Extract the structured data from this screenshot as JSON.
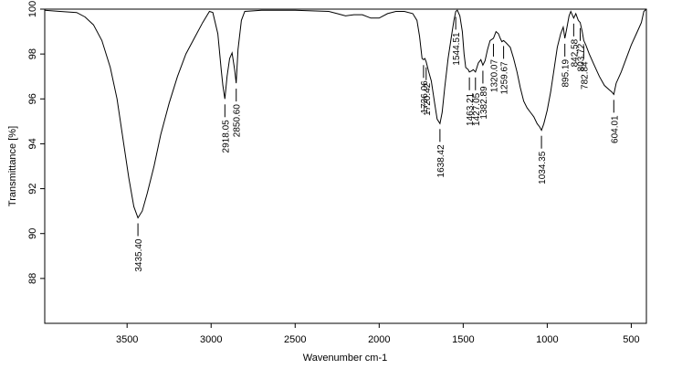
{
  "chart_data": {
    "type": "line",
    "xlabel": "Wavenumber cm-1",
    "ylabel": "Transmittance [%]",
    "xlim": [
      3990,
      410
    ],
    "ylim": [
      86,
      100
    ],
    "x_reversed": true,
    "x_ticks": [
      "3500",
      "3000",
      "2500",
      "2000",
      "1500",
      "1000",
      "500"
    ],
    "x_tick_values": [
      3500,
      3000,
      2500,
      2000,
      1500,
      1000,
      500
    ],
    "y_ticks": [
      "88",
      "90",
      "92",
      "94",
      "96",
      "98",
      "100"
    ],
    "y_tick_values": [
      88,
      90,
      92,
      94,
      96,
      98,
      100
    ],
    "grid": false,
    "series": [
      {
        "points": [
          [
            3990,
            99.95
          ],
          [
            3900,
            99.9
          ],
          [
            3800,
            99.85
          ],
          [
            3750,
            99.65
          ],
          [
            3700,
            99.3
          ],
          [
            3650,
            98.6
          ],
          [
            3600,
            97.4
          ],
          [
            3560,
            96.0
          ],
          [
            3520,
            94.0
          ],
          [
            3490,
            92.5
          ],
          [
            3460,
            91.2
          ],
          [
            3435.4,
            90.7
          ],
          [
            3410,
            91.0
          ],
          [
            3380,
            91.8
          ],
          [
            3340,
            93.0
          ],
          [
            3300,
            94.4
          ],
          [
            3250,
            95.8
          ],
          [
            3200,
            97.0
          ],
          [
            3150,
            98.0
          ],
          [
            3100,
            98.7
          ],
          [
            3050,
            99.4
          ],
          [
            3010,
            99.9
          ],
          [
            2990,
            99.85
          ],
          [
            2960,
            98.9
          ],
          [
            2940,
            97.3
          ],
          [
            2930,
            96.6
          ],
          [
            2918.05,
            96.0
          ],
          [
            2905,
            97.0
          ],
          [
            2890,
            97.8
          ],
          [
            2875,
            98.05
          ],
          [
            2860,
            97.3
          ],
          [
            2850.6,
            96.7
          ],
          [
            2840,
            98.2
          ],
          [
            2820,
            99.5
          ],
          [
            2800,
            99.9
          ],
          [
            2700,
            99.95
          ],
          [
            2500,
            99.95
          ],
          [
            2300,
            99.9
          ],
          [
            2250,
            99.8
          ],
          [
            2200,
            99.7
          ],
          [
            2150,
            99.75
          ],
          [
            2100,
            99.75
          ],
          [
            2050,
            99.6
          ],
          [
            2000,
            99.6
          ],
          [
            1950,
            99.8
          ],
          [
            1900,
            99.9
          ],
          [
            1850,
            99.9
          ],
          [
            1800,
            99.8
          ],
          [
            1775,
            99.5
          ],
          [
            1760,
            98.8
          ],
          [
            1745,
            97.8
          ],
          [
            1736.06,
            97.75
          ],
          [
            1728,
            97.8
          ],
          [
            1720.42,
            97.65
          ],
          [
            1705,
            97.2
          ],
          [
            1690,
            96.8
          ],
          [
            1670,
            95.8
          ],
          [
            1655,
            95.1
          ],
          [
            1638.42,
            94.9
          ],
          [
            1625,
            95.4
          ],
          [
            1610,
            96.5
          ],
          [
            1590,
            97.8
          ],
          [
            1570,
            98.8
          ],
          [
            1555,
            99.5
          ],
          [
            1544.51,
            99.9
          ],
          [
            1535,
            99.95
          ],
          [
            1520,
            99.7
          ],
          [
            1505,
            99.0
          ],
          [
            1495,
            98.0
          ],
          [
            1485,
            97.4
          ],
          [
            1470,
            97.3
          ],
          [
            1463.21,
            97.2
          ],
          [
            1450,
            97.25
          ],
          [
            1440,
            97.3
          ],
          [
            1427.05,
            97.2
          ],
          [
            1410,
            97.6
          ],
          [
            1395,
            97.75
          ],
          [
            1382.89,
            97.5
          ],
          [
            1370,
            97.7
          ],
          [
            1355,
            98.2
          ],
          [
            1340,
            98.6
          ],
          [
            1320.07,
            98.7
          ],
          [
            1305,
            99.0
          ],
          [
            1290,
            98.9
          ],
          [
            1280,
            98.7
          ],
          [
            1270,
            98.55
          ],
          [
            1259.67,
            98.6
          ],
          [
            1245,
            98.5
          ],
          [
            1220,
            98.3
          ],
          [
            1200,
            97.8
          ],
          [
            1180,
            97.2
          ],
          [
            1160,
            96.5
          ],
          [
            1140,
            95.9
          ],
          [
            1120,
            95.6
          ],
          [
            1100,
            95.4
          ],
          [
            1080,
            95.2
          ],
          [
            1060,
            94.9
          ],
          [
            1045,
            94.75
          ],
          [
            1034.35,
            94.6
          ],
          [
            1020,
            94.9
          ],
          [
            1000,
            95.5
          ],
          [
            980,
            96.3
          ],
          [
            960,
            97.3
          ],
          [
            940,
            98.3
          ],
          [
            920,
            98.9
          ],
          [
            905,
            99.2
          ],
          [
            895.19,
            98.7
          ],
          [
            885,
            99.1
          ],
          [
            870,
            99.7
          ],
          [
            860,
            99.9
          ],
          [
            842.58,
            99.6
          ],
          [
            830,
            99.8
          ],
          [
            815,
            99.5
          ],
          [
            803.72,
            99.4
          ],
          [
            792,
            99.0
          ],
          [
            782.84,
            98.6
          ],
          [
            770,
            98.4
          ],
          [
            750,
            98.0
          ],
          [
            720,
            97.5
          ],
          [
            690,
            97.0
          ],
          [
            660,
            96.6
          ],
          [
            630,
            96.4
          ],
          [
            615,
            96.3
          ],
          [
            604.01,
            96.2
          ],
          [
            590,
            96.7
          ],
          [
            560,
            97.2
          ],
          [
            530,
            97.8
          ],
          [
            500,
            98.4
          ],
          [
            470,
            98.9
          ],
          [
            440,
            99.4
          ],
          [
            425,
            99.9
          ],
          [
            410,
            100.0
          ]
        ]
      }
    ],
    "peaks": [
      {
        "label": "3435.40",
        "x": 3435.4,
        "y": 90.7
      },
      {
        "label": "2918.05",
        "x": 2918.05,
        "y": 96.0
      },
      {
        "label": "2850.60",
        "x": 2850.6,
        "y": 96.7
      },
      {
        "label": "1736.06",
        "x": 1736.06,
        "y": 97.75
      },
      {
        "label": "1720.42",
        "x": 1720.42,
        "y": 97.65
      },
      {
        "label": "1638.42",
        "x": 1638.42,
        "y": 94.9
      },
      {
        "label": "1544.51",
        "x": 1544.51,
        "y": 99.9
      },
      {
        "label": "1463.21",
        "x": 1463.21,
        "y": 97.2
      },
      {
        "label": "1427.05",
        "x": 1427.05,
        "y": 97.2
      },
      {
        "label": "1382.89",
        "x": 1382.89,
        "y": 97.5
      },
      {
        "label": "1320.07",
        "x": 1320.07,
        "y": 98.7
      },
      {
        "label": "1259.67",
        "x": 1259.67,
        "y": 98.6
      },
      {
        "label": "1034.35",
        "x": 1034.35,
        "y": 94.6
      },
      {
        "label": "895.19",
        "x": 895.19,
        "y": 98.7
      },
      {
        "label": "842.58",
        "x": 842.58,
        "y": 99.6
      },
      {
        "label": "803.72",
        "x": 803.72,
        "y": 99.4
      },
      {
        "label": "782.84",
        "x": 782.84,
        "y": 98.6
      },
      {
        "label": "604.01",
        "x": 604.01,
        "y": 96.2
      }
    ],
    "colors": {
      "line": "#000000",
      "axis": "#000000",
      "background": "#ffffff"
    }
  }
}
